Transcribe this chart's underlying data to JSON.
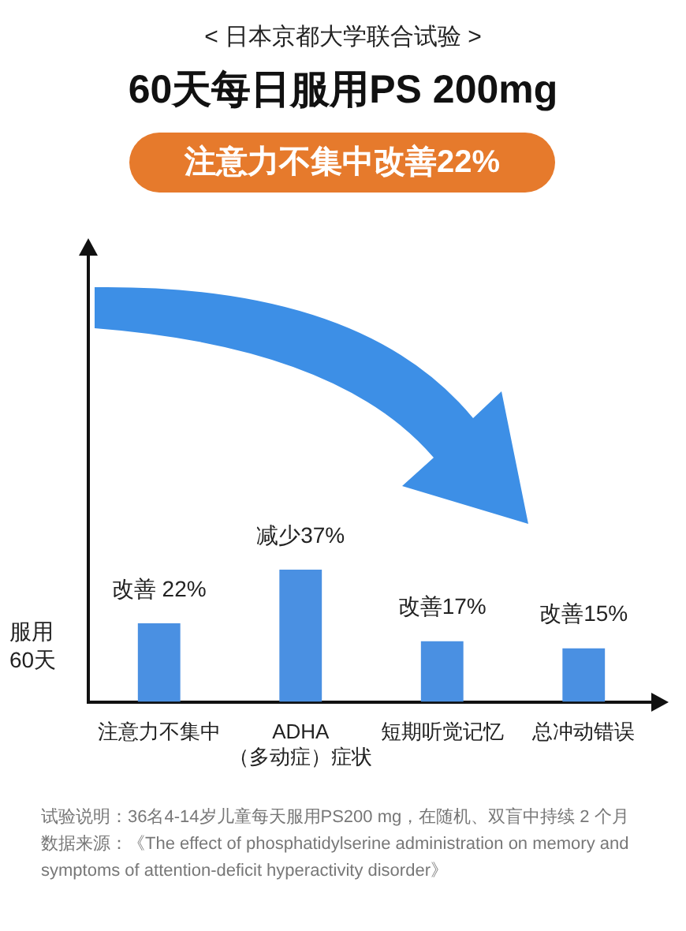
{
  "chart_data": {
    "type": "bar",
    "subtitle": "< 日本京都大学联合试验 >",
    "title": "60天每日服用PS 200mg",
    "categories": [
      "注意力不集中",
      "ADHA\n（多动症）症状",
      "短期听觉记忆",
      "总冲动错误"
    ],
    "values": [
      22,
      37,
      17,
      15
    ],
    "value_labels": [
      "改善 22%",
      "减少37%",
      "改善17%",
      "改善15%"
    ],
    "color": "#4a90e2",
    "ylabel": "服用\n60天",
    "grid": false,
    "legend": false,
    "annotations": [
      "注意力不集中改善22%",
      "试验说明：36名4-14岁儿童每天服用PS200 mg，在随机、双盲中持续 2 个月",
      "数据来源：《The effect of phosphatidylserine administration on memory and symptoms of attention-deficit hyperactivity disorder》"
    ]
  }
}
